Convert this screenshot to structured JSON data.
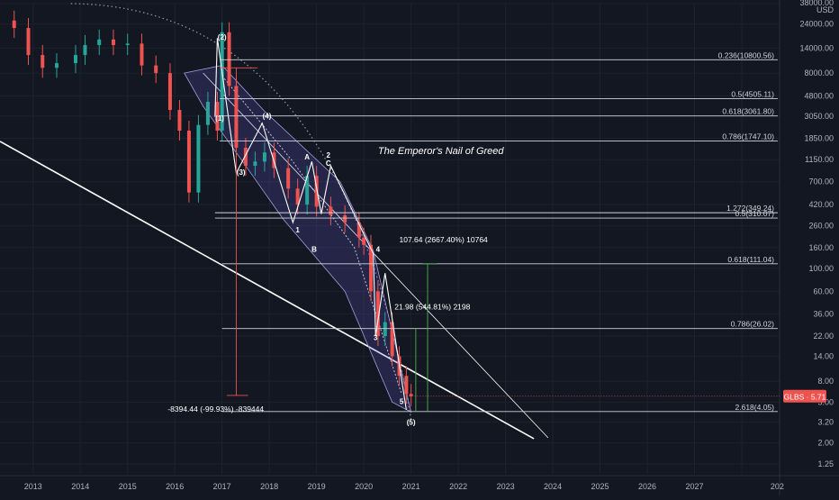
{
  "chart_data": {
    "type": "candlestick",
    "title": "The Emperor's Nail of Greed",
    "ticker": "GLBS",
    "last_price": "5.71",
    "currency": "USD",
    "yscale": "log",
    "ylim": [
      1.0,
      38000
    ],
    "xlim": [
      2012.3,
      2028.8
    ],
    "y_ticks": [
      "38000.00",
      "24000.00",
      "14000.00",
      "8000.00",
      "4800.00",
      "3050.00",
      "1850.00",
      "1150.00",
      "700.00",
      "420.00",
      "260.00",
      "160.00",
      "100.00",
      "60.00",
      "36.00",
      "22.00",
      "14.00",
      "8.00",
      "5.00",
      "3.20",
      "2.00",
      "1.25"
    ],
    "x_ticks": [
      "2013",
      "2014",
      "2015",
      "2016",
      "2017",
      "2018",
      "2019",
      "2020",
      "2021",
      "2022",
      "2023",
      "2024",
      "2025",
      "2026",
      "2027",
      "202"
    ],
    "fib_levels": [
      {
        "label": "0.236(10800.56)",
        "value": 10800.56
      },
      {
        "label": "0.5(4505.11)",
        "value": 4505.11
      },
      {
        "label": "0.618(3061.80)",
        "value": 3061.8
      },
      {
        "label": "0.786(1747.10)",
        "value": 1747.1
      },
      {
        "label": "1.272(349.24)",
        "value": 349.24
      },
      {
        "label": "0.5(310.07)",
        "value": 310.07
      },
      {
        "label": "0.618(111.04)",
        "value": 111.04
      },
      {
        "label": "0.786(26.02)",
        "value": 26.02
      },
      {
        "label": "2.618(4.05)",
        "value": 4.05
      }
    ],
    "annotations": {
      "measure_top": "107.64 (2667.40%) 10764",
      "measure_mid": "21.98 (544.81%) 2198",
      "measure_drop": "-8394.44 (-99.93%) -839444"
    },
    "wave_labels": [
      {
        "text": "(2)",
        "x": 2017.0,
        "y": 17000
      },
      {
        "text": "(1)",
        "x": 2016.95,
        "y": 2750
      },
      {
        "text": "(3)",
        "x": 2017.4,
        "y": 820
      },
      {
        "text": "(4)",
        "x": 2017.95,
        "y": 2880
      },
      {
        "text": "A",
        "x": 2018.8,
        "y": 1150
      },
      {
        "text": "2",
        "x": 2019.25,
        "y": 1200
      },
      {
        "text": "C",
        "x": 2019.25,
        "y": 1000
      },
      {
        "text": "1",
        "x": 2018.6,
        "y": 225
      },
      {
        "text": "B",
        "x": 2018.95,
        "y": 145
      },
      {
        "text": "4",
        "x": 2020.3,
        "y": 145
      },
      {
        "text": "3",
        "x": 2020.25,
        "y": 20
      },
      {
        "text": "5",
        "x": 2020.8,
        "y": 4.8
      },
      {
        "text": "(5)",
        "x": 2021.0,
        "y": 3.0
      }
    ],
    "colors": {
      "background": "#131722",
      "up": "#26a69a",
      "down": "#ef5350",
      "fib_line": "#d1d4dc",
      "trendline": "#ffffff",
      "channel_fill": "#6a5acd",
      "measure_green": "#4caf50",
      "measure_red": "#ef5350",
      "ticker_badge": "#ef5350"
    }
  }
}
